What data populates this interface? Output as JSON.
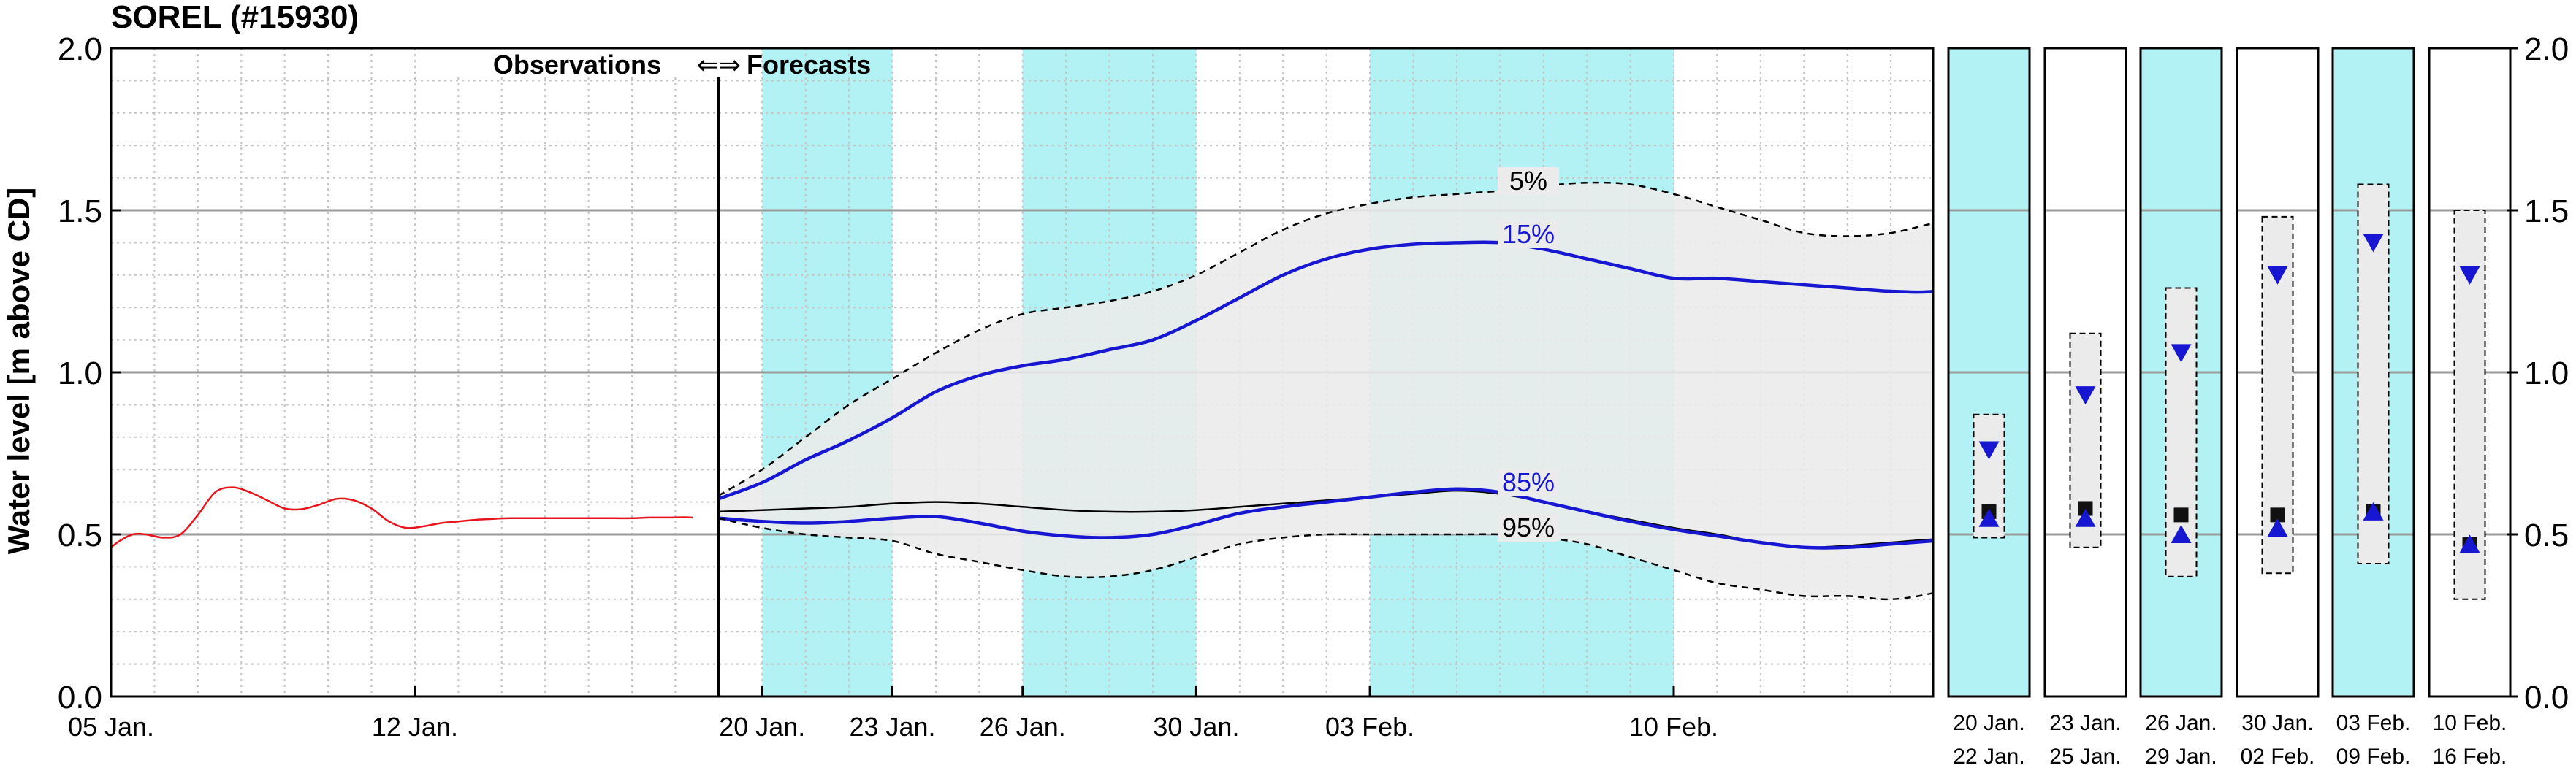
{
  "chart_data": {
    "type": "line",
    "title": "SOREL (#15930)",
    "ylabel": "Water level [m above CD]",
    "ylim": [
      0,
      2
    ],
    "y_ticks": [
      "0.0",
      "0.5",
      "1.0",
      "1.5",
      "2.0"
    ],
    "x_domain_days": [
      0,
      36
    ],
    "x_ticks": [
      {
        "day": 0,
        "label": "05 Jan."
      },
      {
        "day": 7,
        "label": "12 Jan."
      },
      {
        "day": 15,
        "label": "20 Jan."
      },
      {
        "day": 18,
        "label": "23 Jan."
      },
      {
        "day": 21,
        "label": "26 Jan."
      },
      {
        "day": 25,
        "label": "30 Jan."
      },
      {
        "day": 29,
        "label": "03 Feb."
      },
      {
        "day": 36,
        "label": "10 Feb."
      }
    ],
    "obs_forecast_divider_day": 14,
    "annotation_left": "Observations",
    "annotation_arrows": "⇐⇒",
    "annotation_right": "Forecasts",
    "highlight_bands": [
      [
        15,
        18
      ],
      [
        21,
        25
      ],
      [
        29,
        36
      ]
    ],
    "background_colors": {
      "band": "#b2f1f4",
      "envelope": "#ebebeb",
      "observed": "#e8141b",
      "forecast": "#1717d2"
    },
    "observed": {
      "x": [
        0,
        0.2,
        0.5,
        0.8,
        1.2,
        1.6,
        2.0,
        2.4,
        2.8,
        3.2,
        3.6,
        4.0,
        4.4,
        4.8,
        5.2,
        5.6,
        6.0,
        6.4,
        6.8,
        7.2,
        7.6,
        8.0,
        8.4,
        8.8,
        9.2,
        9.6,
        10.0,
        10.4,
        10.8,
        11.2,
        11.6,
        12.0,
        12.4,
        12.8,
        13.2,
        13.4
      ],
      "y": [
        0.46,
        0.48,
        0.5,
        0.5,
        0.49,
        0.5,
        0.56,
        0.63,
        0.645,
        0.63,
        0.605,
        0.58,
        0.578,
        0.592,
        0.61,
        0.605,
        0.58,
        0.54,
        0.52,
        0.525,
        0.535,
        0.54,
        0.545,
        0.548,
        0.55,
        0.55,
        0.55,
        0.55,
        0.55,
        0.55,
        0.55,
        0.55,
        0.552,
        0.552,
        0.553,
        0.552
      ]
    },
    "forecast_days": [
      14,
      15,
      16,
      17,
      18,
      19,
      20,
      21,
      22,
      23,
      24,
      25,
      26,
      27,
      28,
      29,
      30,
      31,
      32,
      33,
      34,
      35,
      36,
      37,
      38,
      39,
      40,
      41,
      42,
      43,
      44
    ],
    "series": [
      {
        "name": "5%",
        "style": "dashed",
        "values": [
          0.62,
          0.7,
          0.8,
          0.9,
          0.98,
          1.06,
          1.13,
          1.18,
          1.2,
          1.22,
          1.25,
          1.3,
          1.37,
          1.44,
          1.49,
          1.52,
          1.54,
          1.55,
          1.56,
          1.575,
          1.585,
          1.58,
          1.55,
          1.51,
          1.47,
          1.43,
          1.42,
          1.43,
          1.46,
          1.48,
          1.5
        ]
      },
      {
        "name": "15%",
        "style": "solid",
        "values": [
          0.61,
          0.66,
          0.73,
          0.79,
          0.86,
          0.94,
          0.99,
          1.02,
          1.04,
          1.07,
          1.1,
          1.16,
          1.23,
          1.3,
          1.35,
          1.38,
          1.395,
          1.4,
          1.4,
          1.38,
          1.35,
          1.32,
          1.29,
          1.29,
          1.28,
          1.27,
          1.26,
          1.25,
          1.25,
          1.28,
          1.3
        ]
      },
      {
        "name": "median",
        "style": "solid",
        "values": [
          0.57,
          0.575,
          0.58,
          0.585,
          0.595,
          0.6,
          0.595,
          0.585,
          0.575,
          0.57,
          0.57,
          0.575,
          0.585,
          0.595,
          0.605,
          0.615,
          0.625,
          0.635,
          0.625,
          0.6,
          0.57,
          0.545,
          0.52,
          0.5,
          0.475,
          0.46,
          0.465,
          0.475,
          0.485,
          0.49,
          0.5
        ]
      },
      {
        "name": "85%",
        "style": "solid",
        "values": [
          0.55,
          0.54,
          0.535,
          0.54,
          0.55,
          0.555,
          0.535,
          0.51,
          0.495,
          0.49,
          0.5,
          0.53,
          0.565,
          0.585,
          0.6,
          0.615,
          0.63,
          0.64,
          0.63,
          0.6,
          0.57,
          0.54,
          0.515,
          0.495,
          0.475,
          0.46,
          0.46,
          0.47,
          0.48,
          0.49,
          0.5
        ]
      },
      {
        "name": "95%",
        "style": "dashed",
        "values": [
          0.55,
          0.52,
          0.5,
          0.49,
          0.48,
          0.44,
          0.415,
          0.39,
          0.37,
          0.37,
          0.39,
          0.43,
          0.47,
          0.49,
          0.5,
          0.5,
          0.5,
          0.5,
          0.5,
          0.49,
          0.47,
          0.43,
          0.39,
          0.35,
          0.33,
          0.31,
          0.31,
          0.3,
          0.32,
          0.36,
          0.36
        ]
      }
    ],
    "percentile_labels": [
      "5%",
      "15%",
      "85%",
      "95%"
    ],
    "summary_panels": [
      {
        "top": "20  Jan.",
        "bottom": "22  Jan.",
        "highlight": true,
        "box": [
          0.49,
          0.87
        ],
        "p15": 0.76,
        "p85": 0.55,
        "median": 0.57
      },
      {
        "top": "23  Jan.",
        "bottom": "25  Jan.",
        "highlight": false,
        "box": [
          0.46,
          1.12
        ],
        "p15": 0.93,
        "p85": 0.55,
        "median": 0.58
      },
      {
        "top": "26  Jan.",
        "bottom": "29  Jan.",
        "highlight": true,
        "box": [
          0.37,
          1.26
        ],
        "p15": 1.06,
        "p85": 0.5,
        "median": 0.56
      },
      {
        "top": "30  Jan.",
        "bottom": "02  Feb.",
        "highlight": false,
        "box": [
          0.38,
          1.48
        ],
        "p15": 1.3,
        "p85": 0.52,
        "median": 0.56
      },
      {
        "top": "03  Feb.",
        "bottom": "09  Feb.",
        "highlight": true,
        "box": [
          0.41,
          1.58
        ],
        "p15": 1.4,
        "p85": 0.57,
        "median": 0.57
      },
      {
        "top": "10  Feb.",
        "bottom": "16  Feb.",
        "highlight": false,
        "box": [
          0.3,
          1.5
        ],
        "p15": 1.3,
        "p85": 0.47,
        "median": 0.47
      }
    ]
  }
}
